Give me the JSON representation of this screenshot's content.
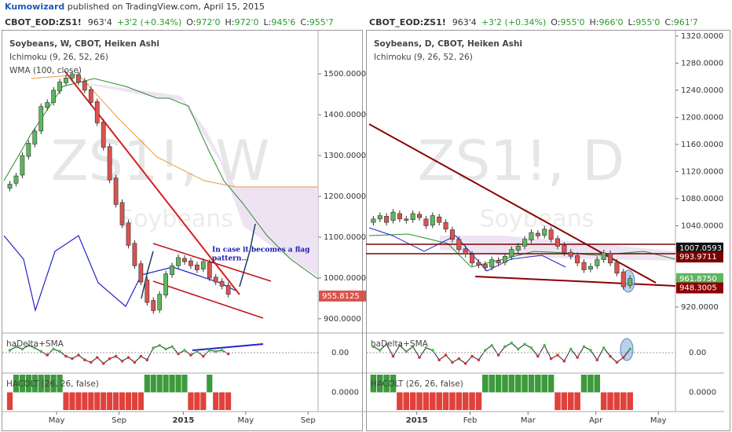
{
  "header": {
    "author": "Kumowizard",
    "text": " published on TradingView.com, April 15, 2015"
  },
  "chart_data": [
    {
      "type": "candlestick",
      "quote": {
        "symbol": "CBOT_EOD:ZS1!",
        "last": "963'4",
        "change": "+3'2 (+0.34%)",
        "fields": [
          {
            "key": "O:",
            "value": "972'0"
          },
          {
            "key": "H:",
            "value": "972'0"
          },
          {
            "key": "L:",
            "value": "945'6"
          },
          {
            "key": "C:",
            "value": "955'7"
          }
        ]
      },
      "title": "Soybeans, W, CBOT, Heiken Ashi",
      "indicators": [
        "Ichimoku (9, 26, 52, 26)",
        "WMA (100, close)"
      ],
      "watermark": "ZS1!, W",
      "watermark_sub": "Soybeans",
      "annotation": [
        "In case it becomes a flag",
        "pattern..."
      ],
      "x": [
        0,
        1,
        2,
        3,
        4,
        5,
        6,
        7,
        8,
        9,
        10,
        11,
        12,
        13,
        14,
        15,
        16,
        17,
        18,
        19,
        20,
        21,
        22,
        23,
        24,
        25,
        26,
        27,
        28,
        29,
        30,
        31,
        32,
        33,
        34,
        35
      ],
      "open": [
        1220,
        1232,
        1252,
        1298,
        1328,
        1360,
        1418,
        1430,
        1458,
        1478,
        1490,
        1498,
        1482,
        1462,
        1432,
        1382,
        1322,
        1245,
        1185,
        1135,
        1085,
        1035,
        995,
        945,
        922,
        958,
        1008,
        1030,
        1048,
        1042,
        1032,
        1022,
        1038,
        1002,
        992,
        982
      ],
      "close": [
        1230,
        1250,
        1300,
        1330,
        1360,
        1420,
        1430,
        1460,
        1480,
        1490,
        1500,
        1480,
        1460,
        1430,
        1380,
        1320,
        1240,
        1180,
        1130,
        1080,
        1030,
        990,
        940,
        920,
        960,
        1010,
        1030,
        1050,
        1040,
        1030,
        1020,
        1040,
        1000,
        990,
        980,
        960
      ],
      "up_color": "#5cb85c",
      "down_color": "#d9534f",
      "xlim": [
        -1.2,
        49.4
      ],
      "xticks": [
        {
          "value": 7.5,
          "label": "May"
        },
        {
          "value": 17.5,
          "label": "Sep"
        },
        {
          "value": 27.8,
          "label": "2015"
        },
        {
          "value": 37.8,
          "label": "May"
        },
        {
          "value": 47.8,
          "label": "Sep"
        }
      ],
      "ylim": [
        869,
        1606
      ],
      "yticks": [
        {
          "value": 900,
          "label": "900.0000"
        },
        {
          "value": 1000,
          "label": "1000.0000"
        },
        {
          "value": 1100,
          "label": "1100.0000"
        },
        {
          "value": 1200,
          "label": "1200.0000"
        },
        {
          "value": 1300,
          "label": "1300.0000"
        },
        {
          "value": 1400,
          "label": "1400.0000"
        },
        {
          "value": 1500,
          "label": "1500.0000"
        }
      ],
      "price_labels": [
        {
          "value": 955.8125,
          "label": "955.8125",
          "color": "#d9534f"
        }
      ],
      "oscillator": {
        "type": "line",
        "name": "haDelta+SMA",
        "color": "#222",
        "ylim": [
          -1.5,
          1.5
        ],
        "yticks": [
          {
            "value": 0,
            "label": "0.00"
          }
        ],
        "values": [
          0.2,
          0.5,
          0.3,
          0.6,
          0.4,
          0.1,
          -0.2,
          0.3,
          0.1,
          -0.3,
          -0.5,
          -0.2,
          -0.6,
          -0.8,
          -0.4,
          -0.9,
          -0.5,
          -0.3,
          -0.7,
          -0.4,
          -0.8,
          -0.3,
          -0.6,
          0.4,
          0.6,
          0.3,
          0.5,
          -0.1,
          0.2,
          -0.2,
          0.1,
          -0.3,
          0.2,
          0.1,
          0.2,
          -0.1
        ]
      },
      "hacolt": {
        "type": "bar",
        "name": "HACOLT (26, 26, false)",
        "up_color": "#3c9a3c",
        "down_color": "#e0413b",
        "ylim": [
          -1,
          1
        ],
        "yticks": [
          {
            "value": 0,
            "label": "0.0000"
          }
        ],
        "values": [
          -1,
          1,
          1,
          1,
          1,
          1,
          1,
          1,
          1,
          -1,
          -1,
          -1,
          -1,
          -1,
          -1,
          -1,
          -1,
          -1,
          -1,
          -1,
          -1,
          -1,
          1,
          1,
          1,
          1,
          1,
          1,
          1,
          -1,
          -1,
          -1,
          1,
          -1,
          -1,
          -1
        ]
      }
    },
    {
      "type": "candlestick",
      "quote": {
        "symbol": "CBOT_EOD:ZS1!",
        "last": "963'4",
        "change": "+3'2 (+0.34%)",
        "fields": [
          {
            "key": "O:",
            "value": "955'0"
          },
          {
            "key": "H:",
            "value": "966'0"
          },
          {
            "key": "L:",
            "value": "955'0"
          },
          {
            "key": "C:",
            "value": "961'7"
          }
        ]
      },
      "title": "Soybeans, D, CBOT, Heiken Ashi",
      "indicators": [
        "Ichimoku (9, 26, 52, 26)"
      ],
      "watermark": "ZS1!, D",
      "watermark_sub": "Soybeans",
      "x": [
        0,
        1,
        2,
        3,
        4,
        5,
        6,
        7,
        8,
        9,
        10,
        11,
        12,
        13,
        14,
        15,
        16,
        17,
        18,
        19,
        20,
        21,
        22,
        23,
        24,
        25,
        26,
        27,
        28,
        29,
        30,
        31,
        32,
        33,
        34,
        35,
        36,
        37,
        38,
        39
      ],
      "open": [
        1045,
        1050,
        1054,
        1048,
        1058,
        1050,
        1049,
        1057,
        1050,
        1041,
        1053,
        1045,
        1034,
        1020,
        1006,
        998,
        986,
        983,
        979,
        989,
        986,
        994,
        1004,
        1010,
        1019,
        1029,
        1026,
        1034,
        1021,
        1011,
        1001,
        996,
        986,
        976,
        981,
        990,
        999,
        986,
        972,
        952
      ],
      "close": [
        1050,
        1055,
        1045,
        1060,
        1050,
        1048,
        1058,
        1052,
        1040,
        1055,
        1045,
        1035,
        1020,
        1005,
        998,
        985,
        982,
        978,
        990,
        985,
        995,
        1005,
        1010,
        1020,
        1030,
        1025,
        1035,
        1020,
        1010,
        1000,
        995,
        985,
        975,
        980,
        990,
        1000,
        985,
        970,
        950,
        962
      ],
      "up_color": "#5cb85c",
      "down_color": "#d9534f",
      "xlim": [
        -1,
        45.9
      ],
      "xticks": [
        {
          "value": 6.6,
          "label": "2015"
        },
        {
          "value": 14.7,
          "label": "Feb"
        },
        {
          "value": 23.5,
          "label": "Mar"
        },
        {
          "value": 33.8,
          "label": "Apr"
        },
        {
          "value": 43.3,
          "label": "May"
        }
      ],
      "ylim": [
        884,
        1328
      ],
      "yticks": [
        {
          "value": 920,
          "label": "920.0000"
        },
        {
          "value": 960,
          "label": "960.0000"
        },
        {
          "value": 1000,
          "label": "1000.0000"
        },
        {
          "value": 1040,
          "label": "1040.0000"
        },
        {
          "value": 1080,
          "label": "1080.0000"
        },
        {
          "value": 1120,
          "label": "1120.0000"
        },
        {
          "value": 1160,
          "label": "1160.0000"
        },
        {
          "value": 1200,
          "label": "1200.0000"
        },
        {
          "value": 1240,
          "label": "1240.0000"
        },
        {
          "value": 1280,
          "label": "1280.0000"
        },
        {
          "value": 1320,
          "label": "1320.0000"
        }
      ],
      "price_labels": [
        {
          "value": 1007.0593,
          "label": "1007.0593",
          "color": "#111"
        },
        {
          "value": 993.9711,
          "label": "993.9711",
          "color": "#7a0000"
        },
        {
          "value": 961.875,
          "label": "961.8750",
          "color": "#5cb85c"
        },
        {
          "value": 948.3005,
          "label": "948.3005",
          "color": "#8b0000"
        }
      ],
      "oscillator": {
        "type": "line",
        "name": "haDelta+SMA",
        "color": "#222",
        "ylim": [
          -1.5,
          1.5
        ],
        "yticks": [
          {
            "value": 0,
            "label": "0.00"
          }
        ],
        "values": [
          0.5,
          0.2,
          0.7,
          -0.3,
          0.6,
          0.1,
          0.5,
          -0.4,
          0.4,
          0.2,
          -0.6,
          -0.2,
          -0.8,
          -0.5,
          -0.9,
          -0.3,
          -0.6,
          0.2,
          0.6,
          -0.2,
          0.5,
          0.8,
          0.3,
          0.7,
          0.4,
          -0.3,
          0.6,
          -0.5,
          -0.2,
          -0.7,
          0.3,
          -0.4,
          0.5,
          0.2,
          -0.6,
          0.4,
          -0.3,
          -0.8,
          -0.4,
          0.3
        ]
      },
      "hacolt": {
        "type": "bar",
        "name": "HACOLT (26, 26, false)",
        "up_color": "#3c9a3c",
        "down_color": "#e0413b",
        "ylim": [
          -1,
          1
        ],
        "yticks": [
          {
            "value": 0,
            "label": "0.0000"
          }
        ],
        "values": [
          1,
          1,
          1,
          1,
          -1,
          -1,
          -1,
          -1,
          -1,
          -1,
          -1,
          -1,
          -1,
          -1,
          -1,
          -1,
          -1,
          1,
          1,
          1,
          1,
          1,
          1,
          1,
          1,
          1,
          1,
          1,
          -1,
          -1,
          -1,
          -1,
          1,
          1,
          1,
          -1,
          -1,
          -1,
          -1,
          -1
        ]
      }
    }
  ]
}
